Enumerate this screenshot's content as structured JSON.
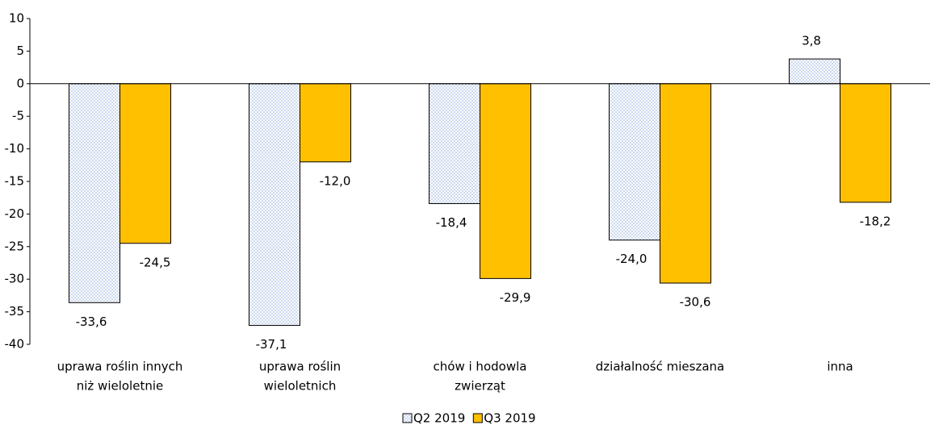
{
  "chart_data": {
    "type": "bar",
    "categories": [
      [
        "uprawa roślin innych",
        "niż wieloletnie"
      ],
      [
        "uprawa roślin",
        "wieloletnich"
      ],
      [
        "chów i hodowla",
        "zwierząt"
      ],
      [
        "działalność mieszana"
      ],
      [
        "inna"
      ]
    ],
    "series": [
      {
        "name": "Q2 2019",
        "color": "#8eaadb",
        "pattern": "dots",
        "values": [
          -33.6,
          -37.1,
          -18.4,
          -24.0,
          3.8
        ],
        "value_labels": [
          "-33,6",
          "-37,1",
          "-18,4",
          "-24,0",
          "3,8"
        ]
      },
      {
        "name": "Q3 2019",
        "color": "#ffc000",
        "values": [
          -24.5,
          -12.0,
          -29.9,
          -30.6,
          -18.2
        ],
        "value_labels": [
          "-24,5",
          "-12,0",
          "-29,9",
          "-30,6",
          "-18,2"
        ]
      }
    ],
    "ylim": [
      -40,
      10
    ],
    "yticks": [
      10,
      5,
      0,
      -5,
      -10,
      -15,
      -20,
      -25,
      -30,
      -35,
      -40
    ],
    "legend": "bottom"
  }
}
